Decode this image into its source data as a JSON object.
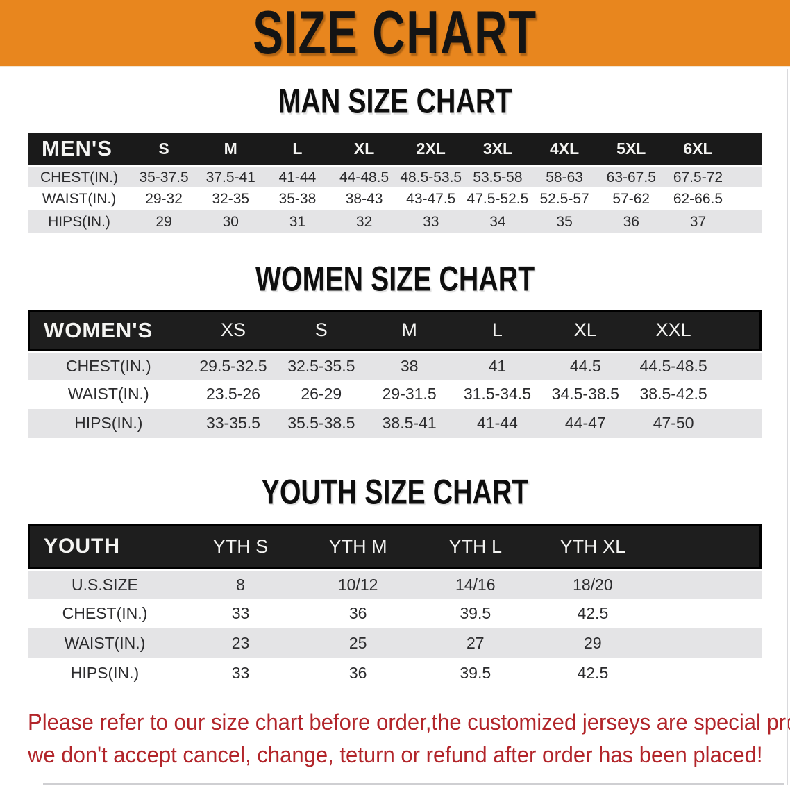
{
  "banner": {
    "title": "SIZE CHART"
  },
  "colors": {
    "banner_orange": "#E8861E",
    "header_black": "#1A1A1A",
    "row_gray": "#E4E4E6",
    "disclaimer_red": "#B2252A"
  },
  "tables": [
    {
      "id": "men",
      "heading": "MAN SIZE CHART",
      "label": "MEN'S",
      "sizes": [
        "S",
        "M",
        "L",
        "XL",
        "2XL",
        "3XL",
        "4XL",
        "5XL",
        "6XL"
      ],
      "rows": [
        {
          "label": "CHEST(IN.)",
          "values": [
            "35-37.5",
            "37.5-41",
            "41-44",
            "44-48.5",
            "48.5-53.5",
            "53.5-58",
            "58-63",
            "63-67.5",
            "67.5-72"
          ]
        },
        {
          "label": "WAIST(IN.)",
          "values": [
            "29-32",
            "32-35",
            "35-38",
            "38-43",
            "43-47.5",
            "47.5-52.5",
            "52.5-57",
            "57-62",
            "62-66.5"
          ]
        },
        {
          "label": "HIPS(IN.)",
          "values": [
            "29",
            "30",
            "31",
            "32",
            "33",
            "34",
            "35",
            "36",
            "37"
          ]
        }
      ]
    },
    {
      "id": "women",
      "heading": "WOMEN SIZE CHART",
      "label": "WOMEN'S",
      "sizes": [
        "XS",
        "S",
        "M",
        "L",
        "XL",
        "XXL"
      ],
      "rows": [
        {
          "label": "CHEST(IN.)",
          "values": [
            "29.5-32.5",
            "32.5-35.5",
            "38",
            "41",
            "44.5",
            "44.5-48.5"
          ]
        },
        {
          "label": "WAIST(IN.)",
          "values": [
            "23.5-26",
            "26-29",
            "29-31.5",
            "31.5-34.5",
            "34.5-38.5",
            "38.5-42.5"
          ]
        },
        {
          "label": "HIPS(IN.)",
          "values": [
            "33-35.5",
            "35.5-38.5",
            "38.5-41",
            "41-44",
            "44-47",
            "47-50"
          ]
        }
      ]
    },
    {
      "id": "youth",
      "heading": "YOUTH SIZE CHART",
      "label": "YOUTH",
      "sizes": [
        "YTH S",
        "YTH M",
        "YTH L",
        "YTH XL"
      ],
      "rows": [
        {
          "label": "U.S.SIZE",
          "values": [
            "8",
            "10/12",
            "14/16",
            "18/20"
          ]
        },
        {
          "label": "CHEST(IN.)",
          "values": [
            "33",
            "36",
            "39.5",
            "42.5"
          ]
        },
        {
          "label": "WAIST(IN.)",
          "values": [
            "23",
            "25",
            "27",
            "29"
          ]
        },
        {
          "label": "HIPS(IN.)",
          "values": [
            "33",
            "36",
            "39.5",
            "42.5"
          ]
        }
      ]
    }
  ],
  "footer": {
    "line1": "Please refer to our size chart before order,the customized jerseys are special products,",
    "line2": "we don't accept cancel, change, teturn or refund after order has been placed!"
  }
}
